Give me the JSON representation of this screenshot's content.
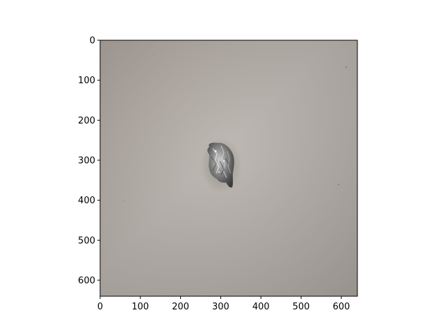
{
  "image": {
    "subject": "crumpled aluminum foil ball on a gray surface",
    "background_color": "#b3aca6",
    "object_color": "#6a6868"
  },
  "axes": {
    "x_ticks": [
      "0",
      "100",
      "200",
      "300",
      "400",
      "500",
      "600"
    ],
    "y_ticks": [
      "0",
      "100",
      "200",
      "300",
      "400",
      "500",
      "600"
    ],
    "xlim": [
      0,
      640
    ],
    "ylim": [
      640,
      0
    ],
    "y_inverted": true
  }
}
